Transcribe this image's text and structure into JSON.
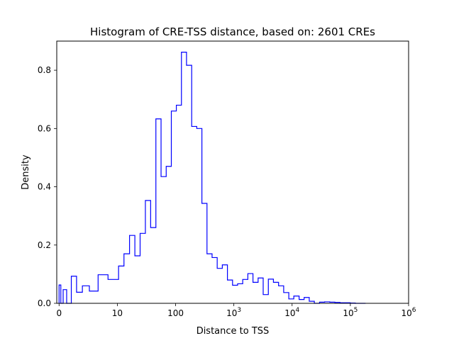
{
  "chart_data": {
    "type": "histogram",
    "title": "Histogram of CRE-TSS distance, based on: 2601 CREs",
    "xlabel": "Distance to TSS",
    "ylabel": "Density",
    "x_scale": "symlog",
    "xlim": [
      -0.4,
      1000000
    ],
    "ylim": [
      0,
      0.9
    ],
    "x_ticks": [
      {
        "value": 0,
        "label": "0",
        "mathtext": false
      },
      {
        "value": 10,
        "label": "10",
        "mathtext": false
      },
      {
        "value": 100,
        "label": "100",
        "mathtext": false
      },
      {
        "value": 1000,
        "label": "10",
        "exp": "3",
        "mathtext": true
      },
      {
        "value": 10000,
        "label": "10",
        "exp": "4",
        "mathtext": true
      },
      {
        "value": 100000,
        "label": "10",
        "exp": "5",
        "mathtext": true
      },
      {
        "value": 1000000,
        "label": "10",
        "exp": "6",
        "mathtext": true
      }
    ],
    "y_ticks": [
      {
        "value": 0.0,
        "label": "0.0"
      },
      {
        "value": 0.2,
        "label": "0.2"
      },
      {
        "value": 0.4,
        "label": "0.4"
      },
      {
        "value": 0.6,
        "label": "0.6"
      },
      {
        "value": 0.8,
        "label": "0.8"
      }
    ],
    "grid": false,
    "legend": "none",
    "line_color": "#0000ff",
    "bin_edges": [
      0,
      0.3,
      0.7,
      1.3,
      2.1,
      3.0,
      4.0,
      5.2,
      6.7,
      8.4,
      10.5,
      13.0,
      16.2,
      20.0,
      24.6,
      30.3,
      37.3,
      45.9,
      56.3,
      69.0,
      84.5,
      103,
      126,
      154,
      189,
      231,
      283,
      346,
      423,
      518,
      634,
      776,
      950,
      1160,
      1420,
      1740,
      2130,
      2610,
      3190,
      3910,
      4780,
      5860,
      7170,
      8780,
      10700,
      13200,
      16100,
      19700,
      24100,
      29600,
      36200,
      44300,
      54200,
      66400,
      81300,
      99500,
      121800,
      149100,
      182500
    ],
    "densities": [
      0.063,
      0.0,
      0.047,
      0.0,
      0.093,
      0.038,
      0.06,
      0.042,
      0.098,
      0.082,
      0.128,
      0.17,
      0.233,
      0.163,
      0.24,
      0.353,
      0.26,
      0.633,
      0.435,
      0.47,
      0.66,
      0.68,
      0.862,
      0.817,
      0.607,
      0.6,
      0.343,
      0.17,
      0.157,
      0.12,
      0.132,
      0.08,
      0.062,
      0.067,
      0.082,
      0.102,
      0.072,
      0.087,
      0.03,
      0.083,
      0.072,
      0.06,
      0.037,
      0.015,
      0.025,
      0.013,
      0.02,
      0.007,
      0.0,
      0.004,
      0.005,
      0.004,
      0.003,
      0.002,
      0.002,
      0.001,
      0.0,
      0.0
    ]
  }
}
